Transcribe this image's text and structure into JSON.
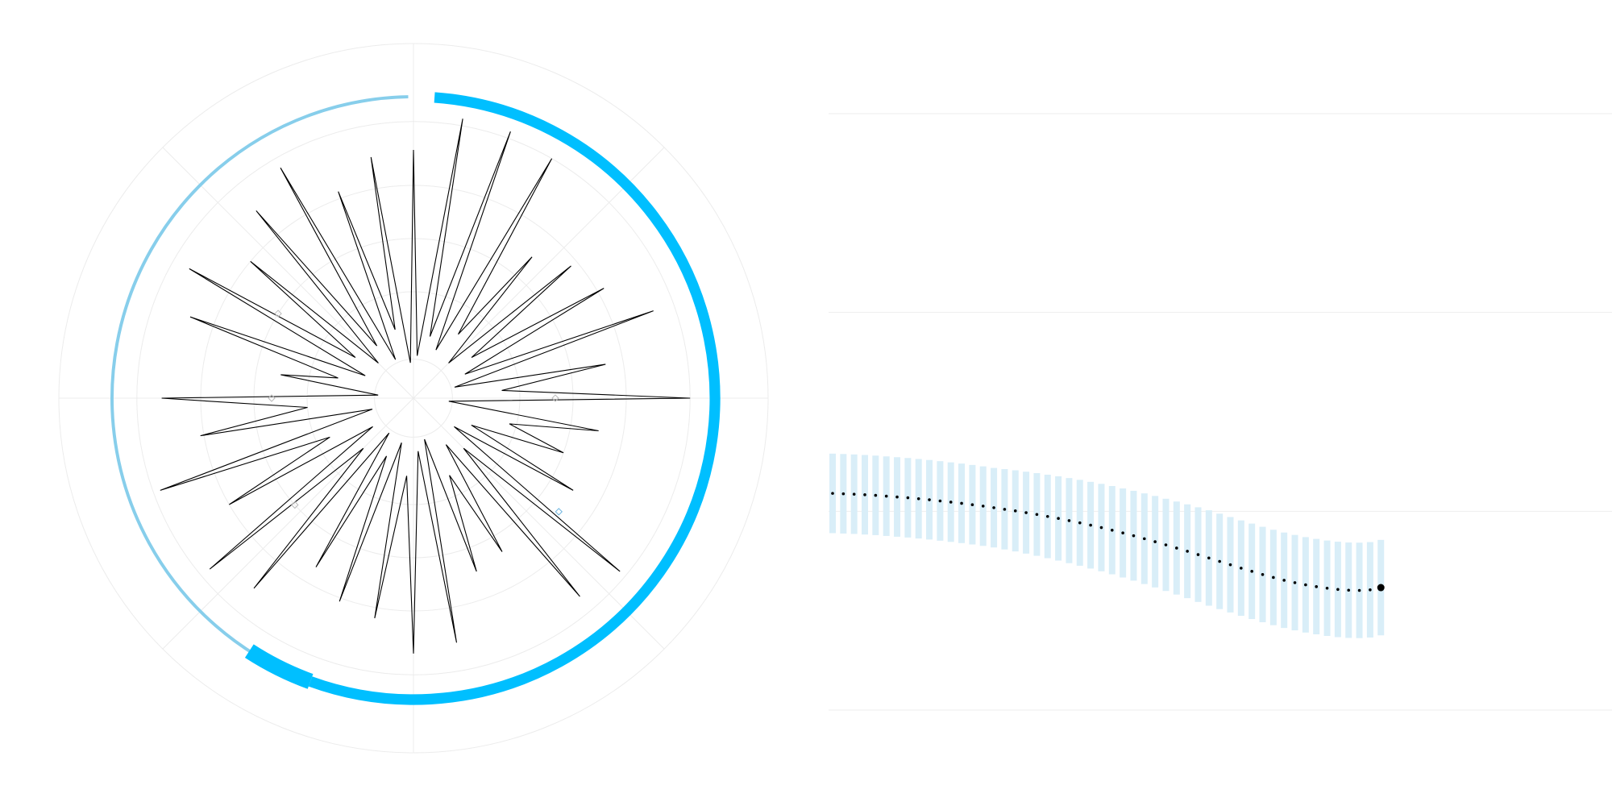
{
  "chart_data": [
    {
      "type": "polar",
      "rlim": [
        0,
        100
      ],
      "rticks": [
        11,
        30,
        45,
        60,
        78,
        100
      ],
      "thetaticks": [
        0,
        45,
        90,
        135,
        180,
        225,
        270,
        315
      ],
      "grid": true,
      "color": "#000000",
      "values": [
        70,
        12,
        80,
        18,
        80,
        15,
        78,
        22,
        52,
        14,
        58,
        20,
        62,
        16,
        72,
        12,
        55,
        25,
        78,
        10,
        53,
        28,
        45,
        18,
        52,
        14,
        76,
        20,
        73,
        16,
        50,
        24,
        52,
        12,
        70,
        15,
        72,
        22,
        63,
        13,
        61,
        18,
        55,
        12,
        70,
        20,
        75,
        14,
        60,
        26,
        76,
        12,
        61,
        30,
        71,
        10,
        38,
        22,
        67,
        15,
        73,
        20,
        60,
        14,
        69,
        18,
        75,
        12,
        62,
        20,
        69,
        10
      ],
      "ring": [
        {
          "start": 202,
          "end": 359,
          "width": 0.9,
          "color": "#87ceeb"
        },
        {
          "start": 4,
          "end": 200,
          "width": 3,
          "color": "#00bfff"
        },
        {
          "start": 200,
          "end": 213,
          "width": 4.5,
          "color": "#00bfff"
        }
      ],
      "markers": [
        {
          "theta": 302,
          "r": 45,
          "color": "#bbbbbb"
        },
        {
          "theta": 270,
          "r": 40,
          "color": "#bbbbbb"
        },
        {
          "theta": 90,
          "r": 40,
          "color": "#bbbbbb"
        },
        {
          "theta": 228,
          "r": 45,
          "color": "#bbbbbb"
        },
        {
          "theta": 128,
          "r": 52,
          "color": "#6fb6e0"
        }
      ]
    },
    {
      "type": "errorbar-line",
      "xlim": [
        -0.375,
        72.5
      ],
      "ylim": [
        0,
        3
      ],
      "yticks": [
        0,
        1,
        2,
        3
      ],
      "grid": true,
      "color": "#000000",
      "error_color": "#d9eef8",
      "end_marker": true,
      "values": [
        1.09,
        1.088,
        1.086,
        1.083,
        1.08,
        1.076,
        1.072,
        1.068,
        1.063,
        1.058,
        1.052,
        1.046,
        1.04,
        1.033,
        1.026,
        1.018,
        1.01,
        1.002,
        0.993,
        0.984,
        0.974,
        0.964,
        0.953,
        0.942,
        0.93,
        0.918,
        0.905,
        0.891,
        0.877,
        0.862,
        0.847,
        0.831,
        0.815,
        0.799,
        0.782,
        0.765,
        0.748,
        0.731,
        0.714,
        0.698,
        0.682,
        0.667,
        0.653,
        0.641,
        0.63,
        0.621,
        0.613,
        0.607,
        0.603,
        0.602,
        0.605,
        0.616
      ],
      "errors": [
        0.2,
        0.2,
        0.2,
        0.2,
        0.2,
        0.2,
        0.2,
        0.2,
        0.2,
        0.2,
        0.2,
        0.2,
        0.2,
        0.2,
        0.2,
        0.2,
        0.202,
        0.204,
        0.206,
        0.208,
        0.21,
        0.212,
        0.214,
        0.216,
        0.218,
        0.22,
        0.222,
        0.224,
        0.226,
        0.228,
        0.23,
        0.232,
        0.234,
        0.236,
        0.238,
        0.24,
        0.24,
        0.24,
        0.24,
        0.24,
        0.24,
        0.24,
        0.24,
        0.24,
        0.24,
        0.24,
        0.24,
        0.24,
        0.24,
        0.24,
        0.24,
        0.24
      ]
    }
  ]
}
